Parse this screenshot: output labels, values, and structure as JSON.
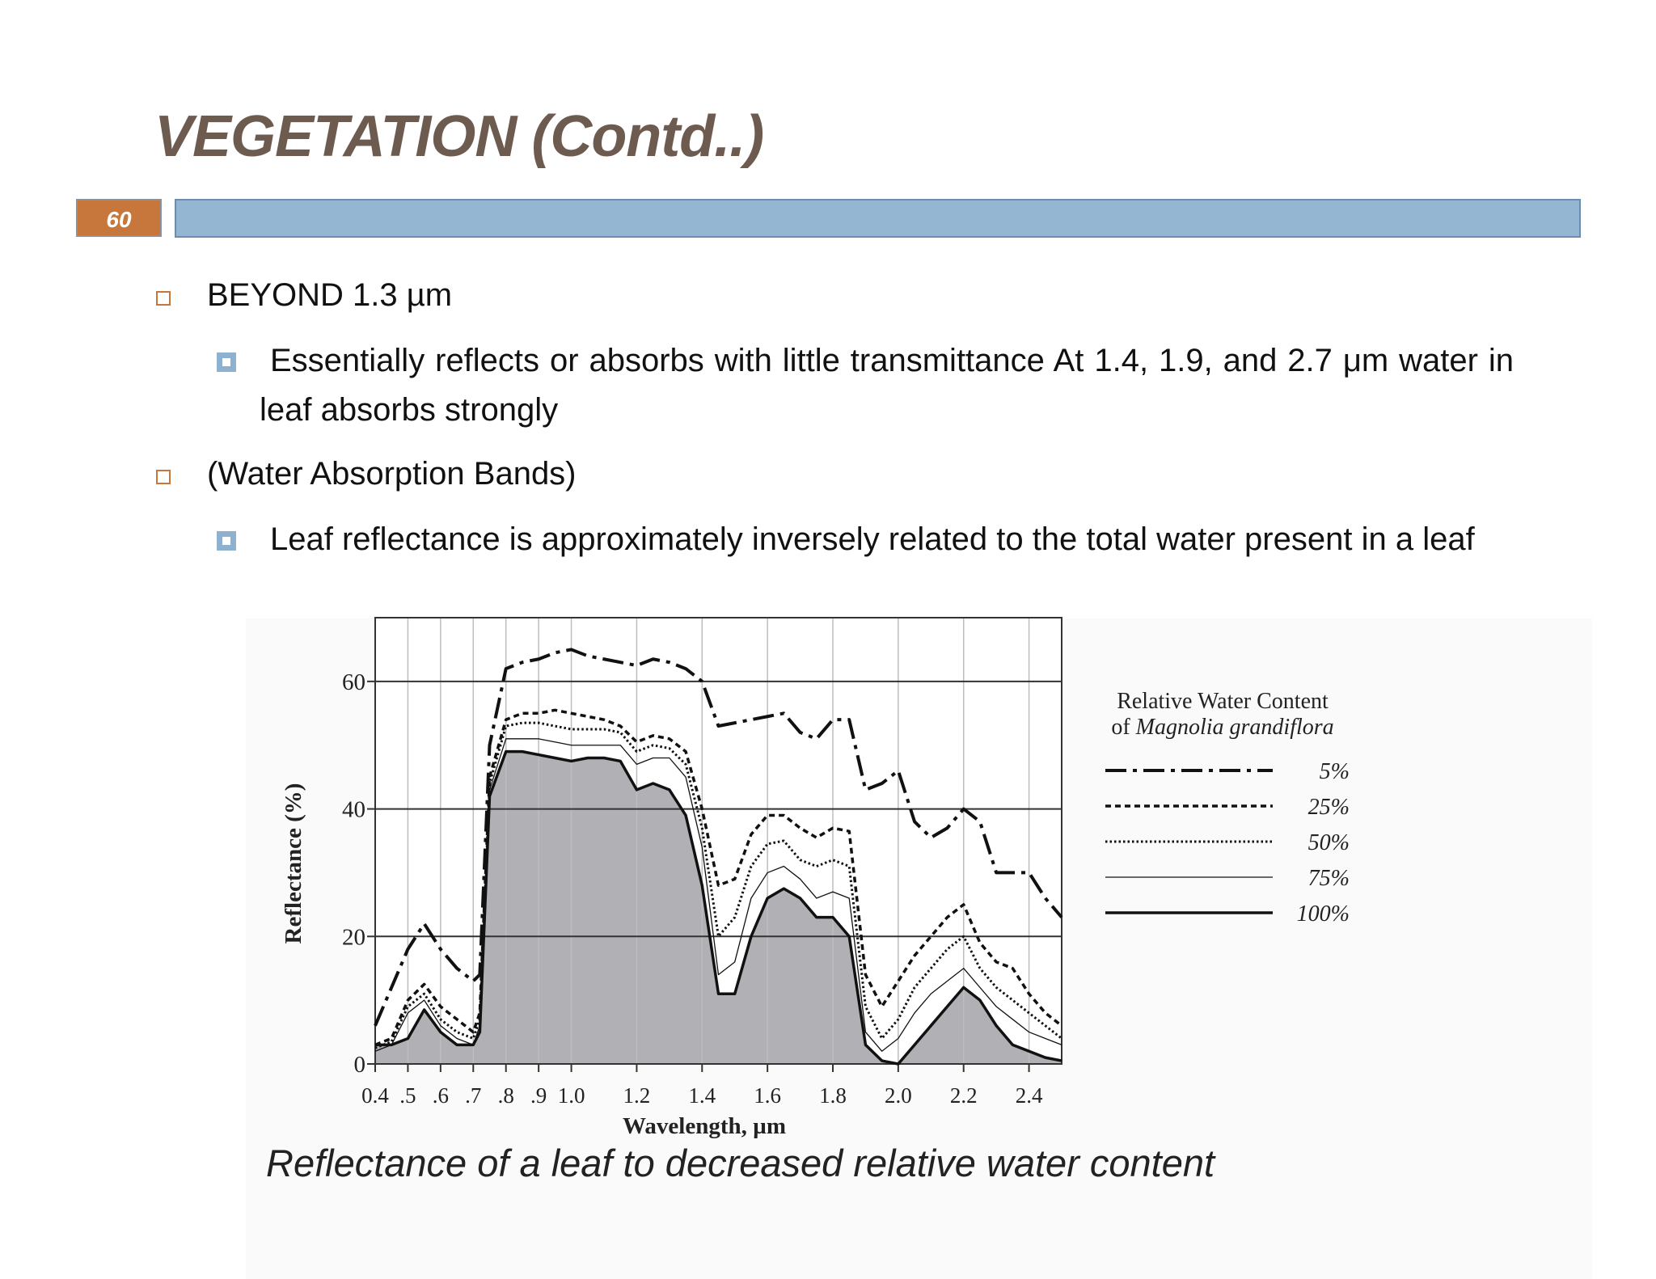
{
  "header": {
    "title": "VEGETATION (Contd..)",
    "page_number": 60
  },
  "bullets": [
    {
      "text": "BEYOND 1.3 µm",
      "sub": [
        "Essentially reflects or absorbs with little transmittance At 1.4, 1.9, and 2.7 μm water in leaf absorbs strongly"
      ]
    },
    {
      "text": "(Water Absorption Bands)",
      "sub": [
        "Leaf reflectance is approximately inversely related to the total water present in a leaf"
      ]
    }
  ],
  "chart_data": {
    "type": "line",
    "caption": "Reflectance of a leaf to decreased relative water content",
    "x_label": "Wavelength, µm",
    "y_label": "Reflectance (%)",
    "legend_title": [
      "Relative Water Content",
      "of",
      "Magnolia grandiflora"
    ],
    "xlim": [
      0.4,
      2.5
    ],
    "ylim": [
      0,
      70
    ],
    "xticks": [
      0.4,
      {
        "value": 0.5,
        "label": ".5"
      },
      {
        "value": 0.6,
        "label": ".6"
      },
      {
        "value": 0.7,
        "label": ".7"
      },
      {
        "value": 0.8,
        "label": ".8"
      },
      {
        "value": 0.9,
        "label": ".9"
      },
      {
        "value": 1,
        "label": "1.0"
      },
      1.2,
      1.4,
      1.6,
      1.8,
      {
        "value": 2,
        "label": "2.0"
      },
      2.2,
      2.4
    ],
    "yticks": [
      0,
      20,
      40,
      60
    ],
    "grid": true,
    "x": [
      0.4,
      0.45,
      0.5,
      0.55,
      0.6,
      0.65,
      0.7,
      0.72,
      0.75,
      0.8,
      0.85,
      0.9,
      0.95,
      1.0,
      1.05,
      1.1,
      1.15,
      1.2,
      1.25,
      1.3,
      1.35,
      1.4,
      1.45,
      1.5,
      1.55,
      1.6,
      1.65,
      1.7,
      1.75,
      1.8,
      1.85,
      1.9,
      1.95,
      2.0,
      2.05,
      2.1,
      2.15,
      2.2,
      2.25,
      2.3,
      2.35,
      2.4,
      2.45,
      2.5
    ],
    "series": [
      {
        "name": "5%",
        "color": "#111111",
        "dash": "dash-dot",
        "values": [
          6,
          12,
          18,
          22,
          18,
          15,
          13,
          14,
          50,
          62,
          63,
          63.5,
          64.5,
          65,
          64,
          63.5,
          63,
          62.5,
          63.5,
          63,
          62,
          60,
          53,
          53.5,
          54,
          54.5,
          55,
          52,
          51,
          54,
          54,
          43,
          44,
          46,
          38,
          35.5,
          37,
          40,
          38,
          30,
          30,
          30,
          26,
          23
        ]
      },
      {
        "name": "25%",
        "color": "#111111",
        "dash": "dashed",
        "values": [
          3,
          4,
          10,
          12.5,
          9,
          7,
          5,
          8,
          45,
          54,
          55,
          55,
          55.5,
          55,
          54.5,
          54,
          53,
          50.5,
          51.5,
          51,
          49,
          40,
          28,
          29,
          36,
          39,
          39,
          37,
          35.5,
          37,
          36.5,
          14,
          9,
          13,
          17,
          20,
          23,
          25,
          19,
          16,
          15,
          11,
          8,
          6
        ]
      },
      {
        "name": "50%",
        "color": "#111111",
        "dash": "dotted",
        "values": [
          2.5,
          3.5,
          9,
          11,
          7,
          5,
          4,
          7,
          44,
          53,
          53.5,
          53.5,
          53,
          52.5,
          52.5,
          52.5,
          52,
          49,
          50,
          49.5,
          47,
          37,
          20,
          23,
          31,
          34.5,
          35,
          32,
          31,
          32,
          31,
          9,
          4,
          7,
          12,
          15,
          18,
          20,
          15,
          12,
          10,
          8,
          6,
          4
        ]
      },
      {
        "name": "75%",
        "color": "#111111",
        "dash": "thin",
        "values": [
          2,
          3,
          8,
          10,
          6,
          4,
          3,
          6,
          43,
          51,
          51,
          51,
          50.5,
          50,
          50,
          50,
          50,
          47,
          48,
          48,
          45,
          34,
          14,
          16,
          26,
          30,
          31,
          29,
          26,
          27,
          26,
          5,
          2,
          4,
          8,
          11,
          13,
          15,
          12,
          9,
          7,
          5,
          4,
          3
        ]
      },
      {
        "name": "100%",
        "color": "#111111",
        "dash": "solid",
        "fill": "#b1b0b4",
        "values": [
          3,
          3,
          4,
          8.5,
          5,
          3,
          3,
          5,
          42,
          49,
          49,
          48.5,
          48,
          47.5,
          48,
          48,
          47.5,
          43,
          44,
          43,
          39,
          28,
          11,
          11,
          20,
          26,
          27.5,
          26,
          23,
          23,
          20,
          3,
          0.5,
          0,
          3,
          6,
          9,
          12,
          10,
          6,
          3,
          2,
          1,
          0.5
        ]
      }
    ]
  }
}
